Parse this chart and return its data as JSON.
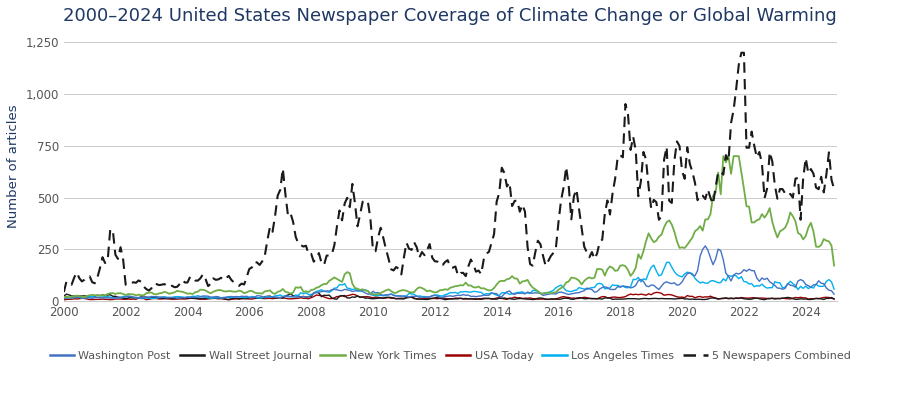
{
  "title": "2000–2024 United States Newspaper Coverage of Climate Change or Global Warming",
  "ylabel": "Number of articles",
  "xlabel": "",
  "ylim": [
    0,
    1300
  ],
  "yticks": [
    0,
    250,
    500,
    750,
    1000,
    1250
  ],
  "xlim_start": 2000.0,
  "xlim_end": 2025.0,
  "xticks": [
    2000,
    2002,
    2004,
    2006,
    2008,
    2010,
    2012,
    2014,
    2016,
    2018,
    2020,
    2022,
    2024
  ],
  "background_color": "#ffffff",
  "grid_color": "#cccccc",
  "series": {
    "washington_post": {
      "label": "Washington Post",
      "color": "#4472C4",
      "lw": 1.0
    },
    "wall_street_journal": {
      "label": "Wall Street Journal",
      "color": "#1a1a1a",
      "lw": 1.0
    },
    "new_york_times": {
      "label": "New York Times",
      "color": "#70AD47",
      "lw": 1.3
    },
    "usa_today": {
      "label": "USA Today",
      "color": "#9B0000",
      "lw": 1.0
    },
    "los_angeles_times": {
      "label": "Los Angeles Times",
      "color": "#00B0F0",
      "lw": 1.0
    },
    "five_combined": {
      "label": "5 Newspapers Combined",
      "color": "#1a1a1a",
      "lw": 1.5
    }
  },
  "title_color": "#1F3864",
  "title_fontsize": 13,
  "label_color": "#1F3864",
  "tick_color": "#555555"
}
